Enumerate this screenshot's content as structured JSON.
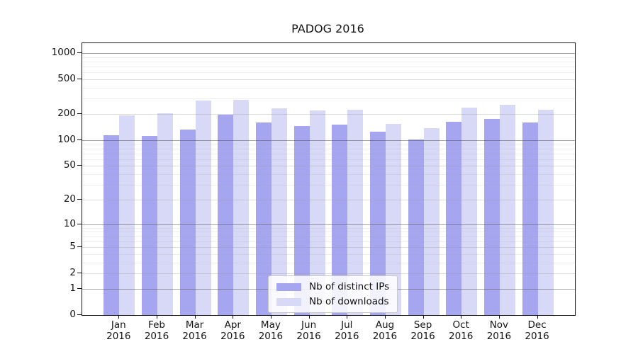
{
  "chart_data": {
    "type": "bar",
    "title": "PADOG 2016",
    "xlabel": "",
    "ylabel": "",
    "yscale": "log1p",
    "ylim": [
      0,
      1300
    ],
    "grid": true,
    "legend_position": "lower center",
    "yticks": [
      0,
      1,
      2,
      5,
      10,
      20,
      50,
      100,
      200,
      500,
      1000
    ],
    "minor_yticks": [
      3,
      4,
      6,
      7,
      8,
      9,
      30,
      40,
      60,
      70,
      80,
      90,
      300,
      400,
      600,
      700,
      800,
      900
    ],
    "categories": [
      "Jan",
      "Feb",
      "Mar",
      "Apr",
      "May",
      "Jun",
      "Jul",
      "Aug",
      "Sep",
      "Oct",
      "Nov",
      "Dec"
    ],
    "year": "2016",
    "series": [
      {
        "name": "Nb of distinct IPs",
        "color": "#a5a5f0",
        "values": [
          113,
          111,
          132,
          195,
          161,
          146,
          150,
          124,
          101,
          163,
          174,
          160
        ]
      },
      {
        "name": "Nb of downloads",
        "color": "#d8d8f7",
        "values": [
          192,
          203,
          288,
          293,
          232,
          220,
          226,
          155,
          137,
          235,
          253,
          225
        ]
      }
    ]
  }
}
